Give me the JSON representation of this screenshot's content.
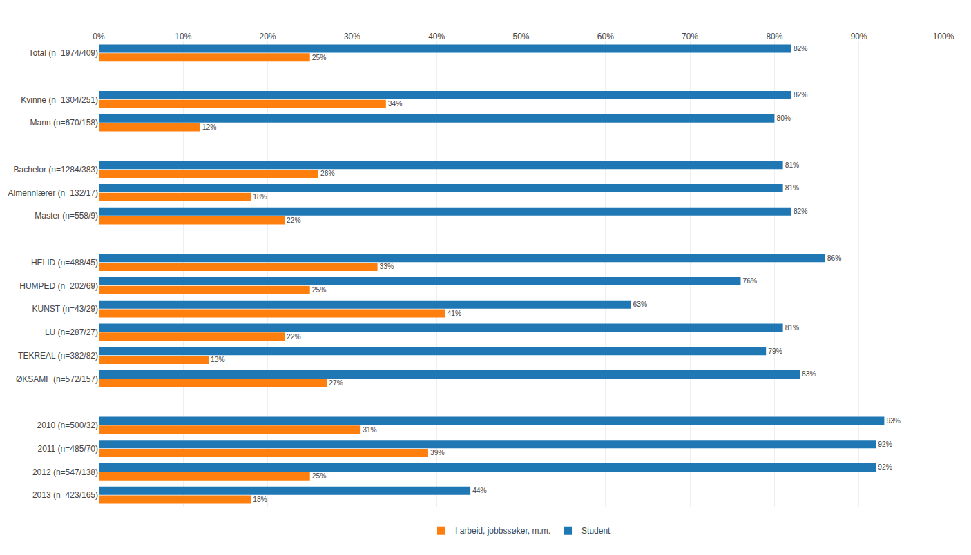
{
  "chart_data": {
    "type": "bar",
    "orientation": "horizontal",
    "categories": [
      "Total (n=1974/409)",
      null,
      "Kvinne (n=1304/251)",
      "Mann (n=670/158)",
      null,
      "Bachelor (n=1284/383)",
      "Almennlærer (n=132/17)",
      "Master (n=558/9)",
      null,
      "HELID (n=488/45)",
      "HUMPED (n=202/69)",
      "KUNST (n=43/29)",
      "LU (n=287/27)",
      "TEKREAL (n=382/82)",
      "ØKSAMF (n=572/157)",
      null,
      "2010 (n=500/32)",
      "2011 (n=485/70)",
      "2012 (n=547/138)",
      "2013 (n=423/165)"
    ],
    "series": [
      {
        "name": "Student",
        "values": [
          82,
          null,
          82,
          80,
          null,
          81,
          81,
          82,
          null,
          86,
          76,
          63,
          81,
          79,
          83,
          null,
          93,
          92,
          92,
          44
        ],
        "value_labels": [
          "82%",
          null,
          "82%",
          "80%",
          null,
          "81%",
          "81%",
          "82%",
          null,
          "86%",
          "76%",
          "63%",
          "81%",
          "79%",
          "83%",
          null,
          "93%",
          "92%",
          "92%",
          "44%"
        ]
      },
      {
        "name": "I arbeid, jobbssøker, m.m.",
        "values": [
          25,
          null,
          34,
          12,
          null,
          26,
          18,
          22,
          null,
          33,
          25,
          41,
          22,
          13,
          27,
          null,
          31,
          39,
          25,
          18
        ],
        "value_labels": [
          "25%",
          null,
          "34%",
          "12%",
          null,
          "26%",
          "18%",
          "22%",
          null,
          "33%",
          "25%",
          "41%",
          "22%",
          "13%",
          "27%",
          null,
          "31%",
          "39%",
          "25%",
          "18%"
        ]
      }
    ],
    "xlim": [
      0,
      100
    ],
    "xticks": [
      {
        "value": 0,
        "label": "0%"
      },
      {
        "value": 10,
        "label": "10%"
      },
      {
        "value": 20,
        "label": "20%"
      },
      {
        "value": 30,
        "label": "30%"
      },
      {
        "value": 40,
        "label": "40%"
      },
      {
        "value": 50,
        "label": "50%"
      },
      {
        "value": 60,
        "label": "60%"
      },
      {
        "value": 70,
        "label": "70%"
      },
      {
        "value": 80,
        "label": "80%"
      },
      {
        "value": 90,
        "label": "90%"
      },
      {
        "value": 100,
        "label": "100%"
      }
    ],
    "grid": true,
    "legend": "bottom",
    "data_labels": true
  }
}
